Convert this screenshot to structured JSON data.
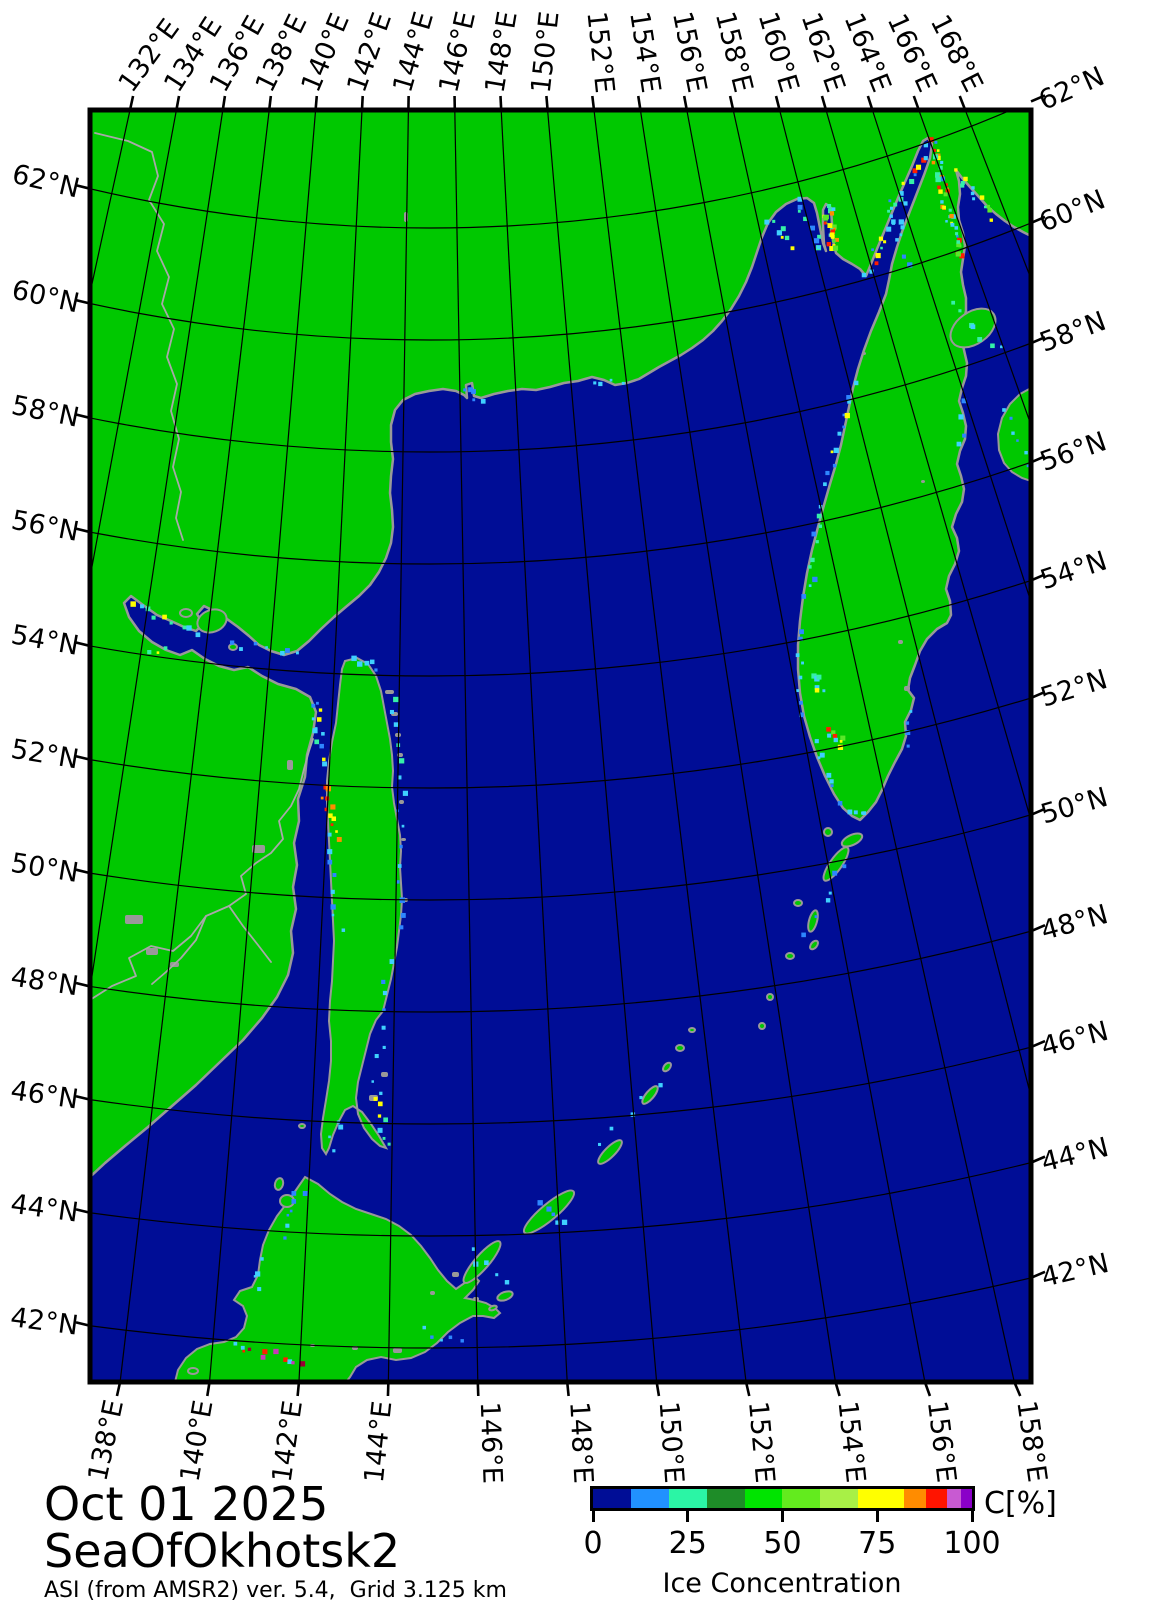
{
  "map": {
    "top_longitude_labels": [
      "132°E",
      "134°E",
      "136°E",
      "138°E",
      "140°E",
      "142°E",
      "144°E",
      "146°E",
      "148°E",
      "150°E",
      "152°E",
      "154°E",
      "156°E",
      "158°E",
      "160°E",
      "162°E",
      "164°E",
      "166°E",
      "168°E"
    ],
    "bottom_longitude_labels": [
      "138°E",
      "140°E",
      "142°E",
      "144°E",
      "146°E",
      "148°E",
      "150°E",
      "152°E",
      "154°E",
      "156°E",
      "158°E"
    ],
    "left_latitude_labels": [
      "62°N",
      "60°N",
      "58°N",
      "56°N",
      "54°N",
      "52°N",
      "50°N",
      "48°N",
      "46°N",
      "44°N",
      "42°N"
    ],
    "right_latitude_labels": [
      "62°N",
      "60°N",
      "58°N",
      "56°N",
      "54°N",
      "52°N",
      "50°N",
      "48°N",
      "46°N",
      "44°N",
      "42°N"
    ]
  },
  "footer": {
    "date": "Oct 01 2025",
    "region": "SeaOfOkhotsk2",
    "source": "ASI (from AMSR2) ver. 5.4,  Grid 3.125 km"
  },
  "colorbar": {
    "unit_label": "C[%]",
    "caption": "Ice Concentration",
    "tick_labels": [
      "0",
      "25",
      "50",
      "75",
      "100"
    ],
    "tick_values": [
      0,
      25,
      50,
      75,
      100
    ],
    "segments": [
      {
        "color": "#000D96",
        "width": 10
      },
      {
        "color": "#2191FF",
        "width": 10
      },
      {
        "color": "#2BF5A5",
        "width": 10
      },
      {
        "color": "#1E8C28",
        "width": 10
      },
      {
        "color": "#00E400",
        "width": 10
      },
      {
        "color": "#63EB1E",
        "width": 10
      },
      {
        "color": "#A8F046",
        "width": 10
      },
      {
        "color": "#FFFF00",
        "width": 12
      },
      {
        "color": "#FF8C00",
        "width": 6
      },
      {
        "color": "#FF1400",
        "width": 5.5
      },
      {
        "color": "#C85AD2",
        "width": 3.5
      },
      {
        "color": "#8A00C8",
        "width": 3
      }
    ]
  },
  "colors": {
    "land": "#00C800",
    "sea": "#000D96",
    "coastline": "#999999",
    "river": "#A8A8A8",
    "graticule": "#000000",
    "frame": "#000000",
    "page_background": "#FFFFFF"
  }
}
